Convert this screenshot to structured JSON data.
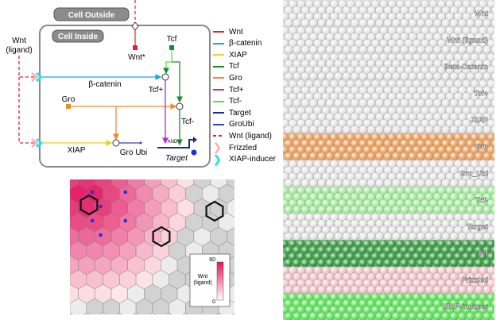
{
  "network": {
    "cell_outside_label": "Cell Outside",
    "cell_inside_label": "Cell Inside",
    "wnt_ligand_label_line1": "Wnt",
    "wnt_ligand_label_line2": "(ligand)",
    "wnt_star_label": "Wnt*",
    "tcf_label": "Tcf",
    "beta_catenin_label": "β-catenin",
    "tcf_plus_label": "Tcf+",
    "tcf_minus_label": "Tcf-",
    "gro_label": "Gro",
    "xiap_label": "XIAP",
    "groubi_label": "Gro Ubi",
    "and_label": "AND",
    "target_label": "Target"
  },
  "legend": [
    {
      "label": "Wnt",
      "color": "#e8212b",
      "style": "line"
    },
    {
      "label": "β-catenin",
      "color": "#1ba5e0",
      "style": "line"
    },
    {
      "label": "XIAP",
      "color": "#e8d21b",
      "style": "line"
    },
    {
      "label": "Tcf",
      "color": "#1d8a2a",
      "style": "line"
    },
    {
      "label": "Gro",
      "color": "#f08a24",
      "style": "line"
    },
    {
      "label": "Tcf+",
      "color": "#b12bd6",
      "style": "line"
    },
    {
      "label": "Tcf-",
      "color": "#58e04a",
      "style": "line"
    },
    {
      "label": "Target",
      "color": "#1c2b8f",
      "style": "line"
    },
    {
      "label": "GroUbi",
      "color": "#3b3fb8",
      "style": "line"
    },
    {
      "label": "Wnt (ligand)",
      "color": "#e8212b",
      "style": "dashed"
    },
    {
      "label": "Frizzled",
      "color": "#f4b6c2",
      "style": "chevron"
    },
    {
      "label": "XIAP-inducer",
      "color": "#2ee0e0",
      "style": "chevron"
    }
  ],
  "heatmap": {
    "colorbar_max": "60",
    "colorbar_min": "0",
    "colorbar_label_line1": "Wnt",
    "colorbar_label_line2": "(ligand)"
  },
  "strips": [
    {
      "label": "Wnt",
      "color": "#e8e8e8"
    },
    {
      "label": "Wnt (ligand)",
      "color": "#e8e8e8"
    },
    {
      "label": "Beta-Catenin",
      "color": "#e8e8e8"
    },
    {
      "label": "Tcf+",
      "color": "#e8e8e8"
    },
    {
      "label": "XIAP",
      "color": "#e8e8e8"
    },
    {
      "label": "Gro",
      "color": "#f0a35e"
    },
    {
      "label": "Gro_Ubi",
      "color": "#e8e8e8"
    },
    {
      "label": "Tcf-",
      "color": "#a8f0a0"
    },
    {
      "label": "Target",
      "color": "#e8e8e8"
    },
    {
      "label": "Tcf",
      "color": "#2e9a3a"
    },
    {
      "label": "Frizzled",
      "color": "#f6c8cf"
    },
    {
      "label": "XIAP-inducer",
      "color": "#5ee85a"
    }
  ],
  "colors": {
    "wnt": "#e8212b",
    "beta_catenin": "#1ba5e0",
    "xiap": "#e8d21b",
    "tcf": "#1d8a2a",
    "gro": "#f08a24",
    "tcf_plus": "#b12bd6",
    "tcf_minus": "#58e04a",
    "target": "#1c2b8f",
    "groubi": "#3b3fb8",
    "frizzled": "#f4b6c2",
    "xiap_inducer": "#2ee0e0"
  }
}
